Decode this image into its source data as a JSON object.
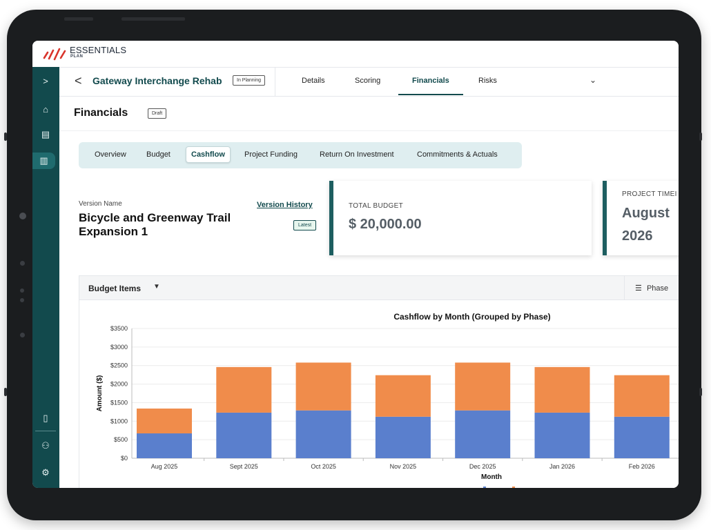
{
  "app": {
    "logo_text": "ESSENTIALS",
    "logo_sub": "PLAN"
  },
  "sidebar": {
    "items": [
      {
        "icon": "chevron-right-icon",
        "glyph": ">"
      },
      {
        "icon": "home-icon",
        "glyph": "⌂"
      },
      {
        "icon": "document-icon",
        "glyph": "▤"
      },
      {
        "icon": "buildings-icon",
        "glyph": "▥"
      },
      {
        "icon": "book-icon",
        "glyph": "▯"
      },
      {
        "icon": "users-icon",
        "glyph": "⚇"
      },
      {
        "icon": "gear-icon",
        "glyph": "⚙"
      }
    ]
  },
  "project": {
    "back_glyph": "<",
    "title": "Gateway Interchange Rehab",
    "status": "In Planning",
    "tabs": [
      "Details",
      "Scoring",
      "Financials",
      "Risks"
    ],
    "active_tab": "Financials",
    "more_glyph": "⌄"
  },
  "financials": {
    "title": "Financials",
    "status": "Draft",
    "subtabs": [
      "Overview",
      "Budget",
      "Cashflow",
      "Project Funding",
      "Return On Investment",
      "Commitments & Actuals"
    ],
    "active_subtab": "Cashflow"
  },
  "version": {
    "label": "Version Name",
    "name": "Bicycle and Greenway Trail Expansion 1",
    "history_link": "Version History",
    "badge": "Latest"
  },
  "cards": {
    "total_budget": {
      "label": "TOTAL BUDGET",
      "value": "$ 20,000.00"
    },
    "timeline": {
      "label": "PROJECT TIMEI",
      "value_line1": "August",
      "value_line2": "2026"
    }
  },
  "budget_items": {
    "title": "Budget Items",
    "caret": "▼",
    "filter_label": "Phase",
    "filter_icon": "☰"
  },
  "colors": {
    "series_blue": "#5a7fcd",
    "series_orange": "#f08c4b",
    "accent": "#124a4d"
  },
  "chart_data": {
    "type": "bar",
    "stacked": true,
    "title": "Cashflow by Month (Grouped by Phase)",
    "xlabel": "Month",
    "ylabel": "Amount ($)",
    "ylim": [
      0,
      3500
    ],
    "yticks": [
      "$0",
      "$500",
      "$1000",
      "$1500",
      "$2000",
      "$2500",
      "$3000",
      "$3500"
    ],
    "categories": [
      "Aug 2025",
      "Sept 2025",
      "Oct 2025",
      "Nov 2025",
      "Dec 2025",
      "Jan 2026",
      "Feb 2026"
    ],
    "series": [
      {
        "values": [
          670,
          1230,
          1290,
          1120,
          1290,
          1230,
          1120
        ]
      },
      {
        "values": [
          670,
          1230,
          1290,
          1120,
          1290,
          1230,
          1120
        ]
      }
    ],
    "grid": true
  }
}
